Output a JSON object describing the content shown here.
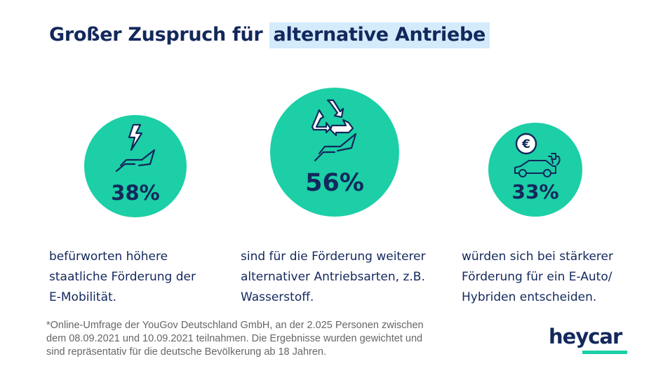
{
  "title": {
    "part1": "Großer Zuspruch für ",
    "highlight": "alternative Antriebe"
  },
  "colors": {
    "accent": "#1ccfa6",
    "navy": "#13285c",
    "highlight": "#d3ebfb"
  },
  "stats": [
    {
      "value": "38%",
      "percent": 38,
      "icon": "lightning-hand-icon",
      "text": "befürworten höhere\nstaatliche Förderung der\n E-Mobilität."
    },
    {
      "value": "56%",
      "percent": 56,
      "icon": "recycle-hand-icon",
      "text": "sind für die Förderung weiterer\nalternativer Antriebsarten, z.B.\nWasserstoff."
    },
    {
      "value": "33%",
      "percent": 33,
      "icon": "euro-electric-car-icon",
      "text": "würden sich bei stärkerer\nFörderung  für ein E-Auto/\nHybriden entscheiden."
    }
  ],
  "footnote": "*Online-Umfrage der YouGov Deutschland GmbH, an der 2.025 Personen zwischen\n  dem 08.09.2021 und 10.09.2021 teilnahmen. Die Ergebnisse wurden gewichtet und\n  sind repräsentativ für die deutsche Bevölkerung ab 18 Jahren.",
  "logo": "heycar"
}
